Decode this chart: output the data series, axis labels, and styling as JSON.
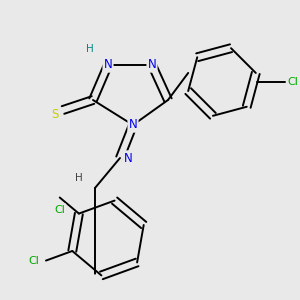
{
  "bg_color": "#e8e9e8",
  "atom_colors": {
    "C": "#000000",
    "N": "#0000ee",
    "S": "#cccc00",
    "Cl": "#00aa00",
    "H": "#008888"
  },
  "bond_color": "#000000",
  "bond_lw": 1.4,
  "font_size": 8.5
}
